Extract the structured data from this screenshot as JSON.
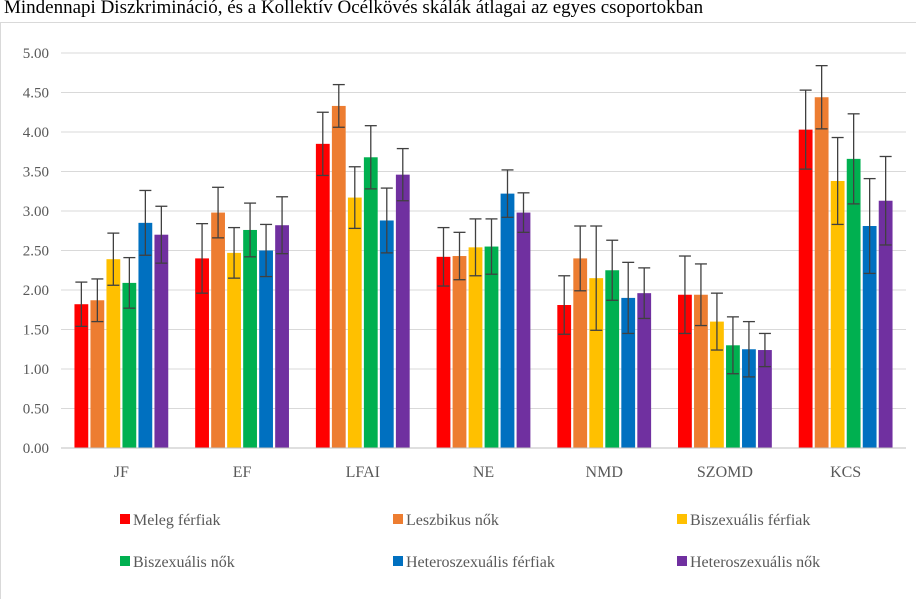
{
  "chart_data": {
    "type": "bar",
    "title": "Mindennapi Diszkrimináció, és a Kollektív Öcélkövés skálák átlagai az egyes csoportokban",
    "categories": [
      "JF",
      "EF",
      "LFAI",
      "NE",
      "NMD",
      "SZOMD",
      "KCS"
    ],
    "ylim": [
      0,
      5
    ],
    "yticks": [
      "0.00",
      "0.50",
      "1.00",
      "1.50",
      "2.00",
      "2.50",
      "3.00",
      "3.50",
      "4.00",
      "4.50",
      "5.00"
    ],
    "grid": true,
    "legend_position": "bottom",
    "error_bars": true,
    "series": [
      {
        "name": "Meleg férfiak",
        "color": "#ff0000",
        "values": [
          1.82,
          2.4,
          3.85,
          2.42,
          1.81,
          1.94,
          4.03
        ],
        "errors": [
          0.28,
          0.44,
          0.4,
          0.37,
          0.37,
          0.49,
          0.5
        ]
      },
      {
        "name": "Leszbikus nők",
        "color": "#ed7d31",
        "values": [
          1.87,
          2.98,
          4.33,
          2.43,
          2.4,
          1.94,
          4.44
        ],
        "errors": [
          0.27,
          0.32,
          0.27,
          0.3,
          0.41,
          0.39,
          0.4
        ]
      },
      {
        "name": "Biszexuális férfiak",
        "color": "#ffc000",
        "values": [
          2.39,
          2.47,
          3.17,
          2.54,
          2.15,
          1.6,
          3.38
        ],
        "errors": [
          0.33,
          0.32,
          0.39,
          0.36,
          0.66,
          0.36,
          0.55
        ]
      },
      {
        "name": "Biszexuális nők",
        "color": "#00b050",
        "values": [
          2.09,
          2.76,
          3.68,
          2.55,
          2.25,
          1.3,
          3.66
        ],
        "errors": [
          0.32,
          0.34,
          0.4,
          0.35,
          0.38,
          0.36,
          0.57
        ]
      },
      {
        "name": "Heteroszexuális férfiak",
        "color": "#0070c0",
        "values": [
          2.85,
          2.5,
          2.88,
          3.22,
          1.9,
          1.25,
          2.81
        ],
        "errors": [
          0.41,
          0.33,
          0.41,
          0.3,
          0.45,
          0.35,
          0.6
        ]
      },
      {
        "name": "Heteroszexuális nők",
        "color": "#7030a0",
        "values": [
          2.7,
          2.82,
          3.46,
          2.98,
          1.96,
          1.24,
          3.13
        ],
        "errors": [
          0.36,
          0.36,
          0.33,
          0.25,
          0.32,
          0.21,
          0.56
        ]
      }
    ]
  }
}
